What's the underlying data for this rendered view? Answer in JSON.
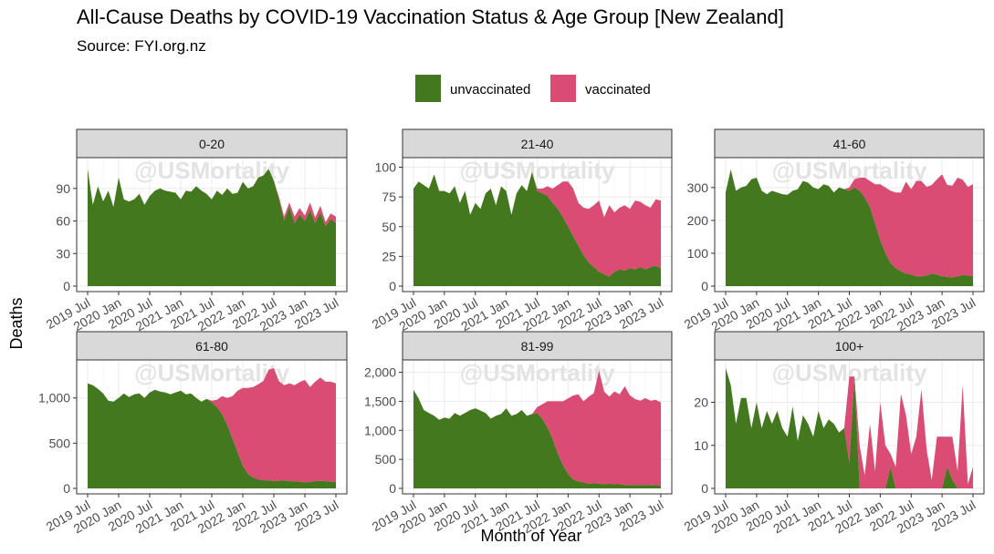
{
  "title": "All-Cause Deaths by COVID-19 Vaccination Status & Age Group [New Zealand]",
  "subtitle": "Source: FYI.org.nz",
  "ylabel": "Deaths",
  "xlabel": "Month of Year",
  "watermark": "@USMortality",
  "colors": {
    "unvaccinated": "#44781e",
    "vaccinated": "#db4c74",
    "strip": "#d9d9d9",
    "grid": "#ebebeb"
  },
  "chart_data": {
    "type": "area",
    "stacked": true,
    "legend_placement": "top-center",
    "grid": true,
    "x_tick_labels": [
      "2019 Jul",
      "2020 Jan",
      "2020 Jul",
      "2021 Jan",
      "2021 Jul",
      "2022 Jan",
      "2022 Jul",
      "2023 Jan",
      "2023 Jul"
    ],
    "x_ticks_month_index": [
      0,
      6,
      12,
      18,
      24,
      30,
      36,
      42,
      48
    ],
    "series_names": [
      "unvaccinated",
      "vaccinated"
    ],
    "panels": [
      {
        "name": "0-20",
        "ylim": [
          0,
          115
        ],
        "yticks": [
          0,
          30,
          60,
          90
        ],
        "ytick_labels": [
          "0",
          "30",
          "60",
          "90"
        ],
        "unvaccinated": [
          108,
          75,
          92,
          78,
          88,
          73,
          100,
          80,
          78,
          80,
          85,
          75,
          83,
          88,
          90,
          88,
          87,
          86,
          80,
          88,
          87,
          92,
          88,
          85,
          80,
          88,
          84,
          90,
          85,
          86,
          96,
          90,
          92,
          100,
          102,
          108,
          97,
          80,
          60,
          73,
          58,
          66,
          60,
          70,
          58,
          68,
          55,
          62,
          58
        ],
        "vaccinated": [
          0,
          0,
          0,
          0,
          0,
          0,
          0,
          0,
          0,
          0,
          0,
          0,
          0,
          0,
          0,
          0,
          0,
          0,
          0,
          0,
          0,
          0,
          0,
          0,
          0,
          0,
          0,
          0,
          0,
          0,
          0,
          0,
          0,
          0,
          0,
          0,
          0,
          2,
          4,
          4,
          6,
          6,
          5,
          7,
          5,
          6,
          4,
          5,
          6
        ]
      },
      {
        "name": "21-40",
        "ylim": [
          0,
          105
        ],
        "yticks": [
          0,
          25,
          50,
          75,
          100
        ],
        "ytick_labels": [
          "0",
          "25",
          "50",
          "75",
          "100"
        ],
        "unvaccinated": [
          82,
          88,
          85,
          82,
          94,
          80,
          80,
          78,
          84,
          70,
          80,
          60,
          70,
          65,
          78,
          82,
          68,
          84,
          80,
          60,
          78,
          85,
          80,
          96,
          80,
          78,
          76,
          70,
          65,
          58,
          50,
          42,
          34,
          26,
          20,
          16,
          12,
          10,
          8,
          12,
          14,
          13,
          15,
          14,
          16,
          14,
          16,
          17,
          15
        ],
        "vaccinated": [
          0,
          0,
          0,
          0,
          0,
          0,
          0,
          0,
          0,
          0,
          0,
          0,
          0,
          0,
          0,
          0,
          0,
          0,
          0,
          0,
          0,
          0,
          0,
          0,
          2,
          4,
          8,
          12,
          20,
          30,
          38,
          40,
          36,
          40,
          45,
          52,
          60,
          48,
          60,
          50,
          52,
          55,
          50,
          58,
          55,
          54,
          50,
          56,
          57
        ]
      },
      {
        "name": "41-60",
        "ylim": [
          0,
          380
        ],
        "yticks": [
          0,
          100,
          200,
          300
        ],
        "ytick_labels": [
          "0",
          "100",
          "200",
          "300"
        ],
        "unvaccinated": [
          285,
          355,
          290,
          300,
          305,
          325,
          330,
          290,
          280,
          290,
          285,
          280,
          278,
          290,
          295,
          320,
          315,
          300,
          295,
          310,
          305,
          285,
          300,
          295,
          290,
          300,
          290,
          270,
          240,
          190,
          140,
          100,
          70,
          55,
          45,
          38,
          35,
          30,
          30,
          32,
          38,
          35,
          30,
          28,
          26,
          30,
          34,
          32,
          30
        ],
        "vaccinated": [
          0,
          0,
          0,
          0,
          0,
          0,
          0,
          0,
          0,
          0,
          0,
          0,
          0,
          0,
          0,
          0,
          0,
          0,
          0,
          0,
          0,
          0,
          0,
          0,
          10,
          25,
          40,
          60,
          80,
          120,
          170,
          200,
          220,
          230,
          240,
          280,
          260,
          290,
          290,
          270,
          270,
          290,
          310,
          280,
          280,
          300,
          290,
          270,
          280
        ]
      },
      {
        "name": "61-80",
        "ylim": [
          0,
          1380
        ],
        "yticks": [
          0,
          500,
          1000
        ],
        "ytick_labels": [
          "0",
          "500",
          "1,000"
        ],
        "unvaccinated": [
          1160,
          1140,
          1100,
          1050,
          970,
          960,
          1000,
          1050,
          1010,
          1040,
          1050,
          1000,
          1060,
          1090,
          1070,
          1060,
          1040,
          1060,
          1080,
          1040,
          1050,
          1000,
          960,
          990,
          950,
          900,
          820,
          700,
          550,
          400,
          250,
          160,
          120,
          100,
          90,
          90,
          80,
          85,
          90,
          80,
          80,
          75,
          70,
          70,
          80,
          85,
          80,
          75,
          70
        ],
        "vaccinated": [
          0,
          0,
          0,
          0,
          0,
          0,
          0,
          0,
          0,
          0,
          0,
          0,
          0,
          0,
          0,
          0,
          0,
          0,
          0,
          0,
          0,
          0,
          0,
          0,
          20,
          80,
          200,
          300,
          470,
          680,
          860,
          950,
          1000,
          1050,
          1100,
          1220,
          1250,
          1100,
          1050,
          1080,
          1060,
          1100,
          1130,
          1050,
          1100,
          1140,
          1100,
          1105,
          1090
        ]
      },
      {
        "name": "81-99",
        "ylim": [
          0,
          2150
        ],
        "yticks": [
          0,
          500,
          1000,
          1500,
          2000
        ],
        "ytick_labels": [
          "0",
          "500",
          "1,000",
          "1,500",
          "2,000"
        ],
        "unvaccinated": [
          1700,
          1550,
          1350,
          1300,
          1250,
          1180,
          1220,
          1200,
          1300,
          1250,
          1300,
          1350,
          1380,
          1340,
          1300,
          1200,
          1250,
          1280,
          1380,
          1250,
          1280,
          1350,
          1250,
          1280,
          1300,
          1200,
          1050,
          850,
          600,
          400,
          250,
          150,
          120,
          100,
          80,
          90,
          80,
          70,
          80,
          70,
          70,
          60,
          60,
          60,
          60,
          55,
          60,
          55,
          50
        ],
        "vaccinated": [
          0,
          0,
          0,
          0,
          0,
          0,
          0,
          0,
          0,
          0,
          0,
          0,
          0,
          0,
          0,
          0,
          0,
          0,
          0,
          0,
          0,
          0,
          0,
          0,
          100,
          250,
          450,
          650,
          900,
          1100,
          1300,
          1450,
          1500,
          1400,
          1500,
          1550,
          1950,
          1600,
          1500,
          1600,
          1550,
          1700,
          1540,
          1480,
          1450,
          1500,
          1450,
          1470,
          1430
        ]
      },
      {
        "name": "100+",
        "ylim": [
          0,
          29
        ],
        "yticks": [
          0,
          10,
          20
        ],
        "ytick_labels": [
          "0",
          "10",
          "20"
        ],
        "unvaccinated": [
          28,
          24,
          15,
          21,
          21,
          14,
          20,
          14,
          18,
          15,
          18,
          14,
          12,
          19,
          11,
          17,
          15,
          12,
          18,
          14,
          16,
          15,
          13,
          14,
          6,
          26,
          0,
          0,
          0,
          0,
          0,
          0,
          5,
          0,
          0,
          0,
          0,
          0,
          0,
          0,
          0,
          0,
          0,
          5,
          2,
          0,
          0,
          0,
          0
        ],
        "vaccinated": [
          0,
          0,
          0,
          0,
          0,
          0,
          0,
          0,
          0,
          0,
          0,
          0,
          0,
          0,
          0,
          0,
          0,
          0,
          0,
          0,
          0,
          0,
          0,
          0,
          20,
          0,
          10,
          3,
          15,
          4,
          20,
          10,
          3,
          5,
          22,
          17,
          8,
          12,
          23,
          9,
          2,
          12,
          12,
          7,
          10,
          4,
          24,
          1,
          5
        ]
      }
    ]
  }
}
